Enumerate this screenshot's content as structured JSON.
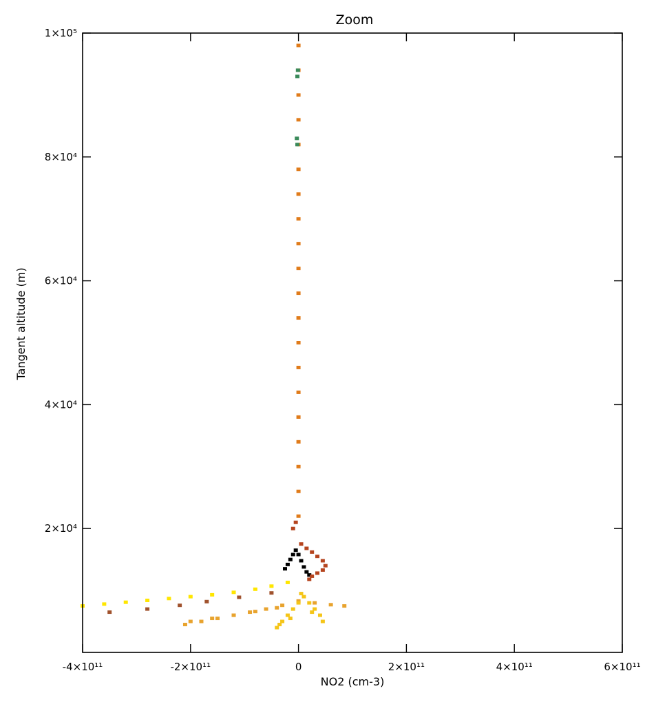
{
  "chart_data": {
    "type": "scatter",
    "title": "Zoom",
    "xlabel": "NO2 (cm-3)",
    "ylabel": "Tangent altitude (m)",
    "xlim": [
      -400000000000.0,
      600000000000.0
    ],
    "ylim": [
      0,
      100000
    ],
    "x_ticks": [
      {
        "value": -400000000000.0,
        "label": "-4×10¹¹"
      },
      {
        "value": -200000000000.0,
        "label": "-2×10¹¹"
      },
      {
        "value": 0,
        "label": "0"
      },
      {
        "value": 200000000000.0,
        "label": "2×10¹¹"
      },
      {
        "value": 400000000000.0,
        "label": "4×10¹¹"
      },
      {
        "value": 600000000000.0,
        "label": "6×10¹¹"
      }
    ],
    "y_ticks": [
      {
        "value": 20000,
        "label": "2×10⁴"
      },
      {
        "value": 40000,
        "label": "4×10⁴"
      },
      {
        "value": 60000,
        "label": "6×10⁴"
      },
      {
        "value": 80000,
        "label": "8×10⁴"
      },
      {
        "value": 100000,
        "label": "1×10⁵"
      }
    ],
    "grid": false,
    "legend": "none",
    "series": [
      {
        "color": "#ffe600",
        "x": [
          -400000000000.0,
          -360000000000.0,
          -320000000000.0,
          -280000000000.0,
          -240000000000.0,
          -200000000000.0,
          -160000000000.0,
          -120000000000.0,
          -80000000000.0,
          -50000000000.0,
          -20000000000.0
        ],
        "y": [
          7500,
          7800,
          8100,
          8400,
          8700,
          9000,
          9300,
          9700,
          10200,
          10700,
          11300
        ]
      },
      {
        "color": "#a0522d",
        "x": [
          -350000000000.0,
          -280000000000.0,
          -220000000000.0,
          -170000000000.0,
          -110000000000.0,
          -50000000000.0
        ],
        "y": [
          6500,
          7000,
          7600,
          8200,
          8900,
          9600
        ]
      },
      {
        "color": "#e8a32e",
        "x": [
          -210000000000.0,
          -180000000000.0,
          -150000000000.0,
          -120000000000.0,
          -90000000000.0,
          -60000000000.0,
          -30000000000.0,
          0,
          30000000000.0,
          60000000000.0,
          85000000000.0,
          -200000000000.0,
          -160000000000.0,
          -120000000000.0,
          -80000000000.0,
          -40000000000.0
        ],
        "y": [
          4500,
          5000,
          5500,
          6000,
          6500,
          7000,
          7600,
          8300,
          8000,
          7700,
          7500,
          5000,
          5500,
          6000,
          6600,
          7200
        ]
      },
      {
        "color": "#f5c518",
        "x": [
          -40000000000.0,
          -30000000000.0,
          -20000000000.0,
          -10000000000.0,
          0,
          10000000000.0,
          20000000000.0,
          30000000000.0,
          40000000000.0,
          45000000000.0,
          -35000000000.0,
          -15000000000.0,
          5000000000.0,
          25000000000.0
        ],
        "y": [
          4000,
          5000,
          6000,
          7000,
          8000,
          9000,
          8000,
          7000,
          6000,
          5000,
          4500,
          5500,
          9500,
          6500
        ]
      },
      {
        "color": "#000000",
        "x": [
          -25000000000.0,
          -20000000000.0,
          -15000000000.0,
          -10000000000.0,
          -5000000000.0,
          0,
          5000000000.0,
          10000000000.0,
          15000000000.0,
          20000000000.0
        ],
        "y": [
          13500,
          14200,
          15000,
          15800,
          16500,
          15800,
          14800,
          13800,
          13000,
          12500
        ]
      },
      {
        "color": "#b5441e",
        "x": [
          5000000000.0,
          15000000000.0,
          25000000000.0,
          35000000000.0,
          45000000000.0,
          50000000000.0,
          45000000000.0,
          35000000000.0,
          25000000000.0,
          20000000000.0,
          -10000000000.0,
          -5000000000.0
        ],
        "y": [
          17500,
          16800,
          16200,
          15500,
          14800,
          14000,
          13300,
          12800,
          12300,
          11800,
          20000,
          21000
        ]
      },
      {
        "color": "#e07b1a",
        "x": [
          0,
          0,
          0,
          0,
          0,
          0,
          0,
          0,
          0,
          0,
          0,
          0,
          0,
          0,
          0,
          0,
          0,
          0,
          0,
          0
        ],
        "y": [
          22000,
          26000,
          30000,
          34000,
          38000,
          42000,
          46000,
          50000,
          54000,
          58000,
          62000,
          66000,
          70000,
          74000,
          78000,
          82000,
          86000,
          90000,
          94000,
          98000
        ]
      },
      {
        "color": "#3a8a5a",
        "x": [
          -2000000000.0,
          -3000000000.0,
          -2000000000.0,
          -1000000000.0
        ],
        "y": [
          82000,
          83000,
          93000,
          94000
        ]
      }
    ]
  }
}
